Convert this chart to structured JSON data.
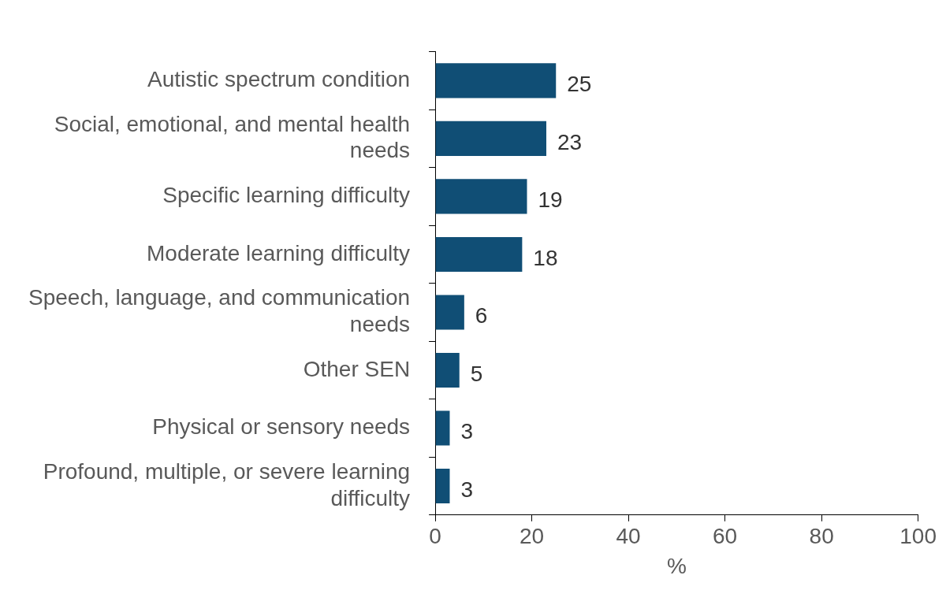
{
  "chart_data": {
    "type": "bar",
    "orientation": "horizontal",
    "xlabel": "%",
    "categories": [
      "Autistic spectrum condition",
      "Social, emotional, and mental health needs",
      "Specific learning difficulty",
      "Moderate learning difficulty",
      "Speech, language, and communication needs",
      "Other SEN",
      "Physical or sensory needs",
      "Profound, multiple, or severe learning difficulty"
    ],
    "values": [
      25,
      23,
      19,
      18,
      6,
      5,
      3,
      3
    ],
    "color": "#104e75",
    "xlim": [
      0,
      100
    ],
    "xticks": [
      0,
      20,
      40,
      60,
      80,
      100
    ],
    "data_labels": true,
    "grid": false,
    "legend": false
  }
}
